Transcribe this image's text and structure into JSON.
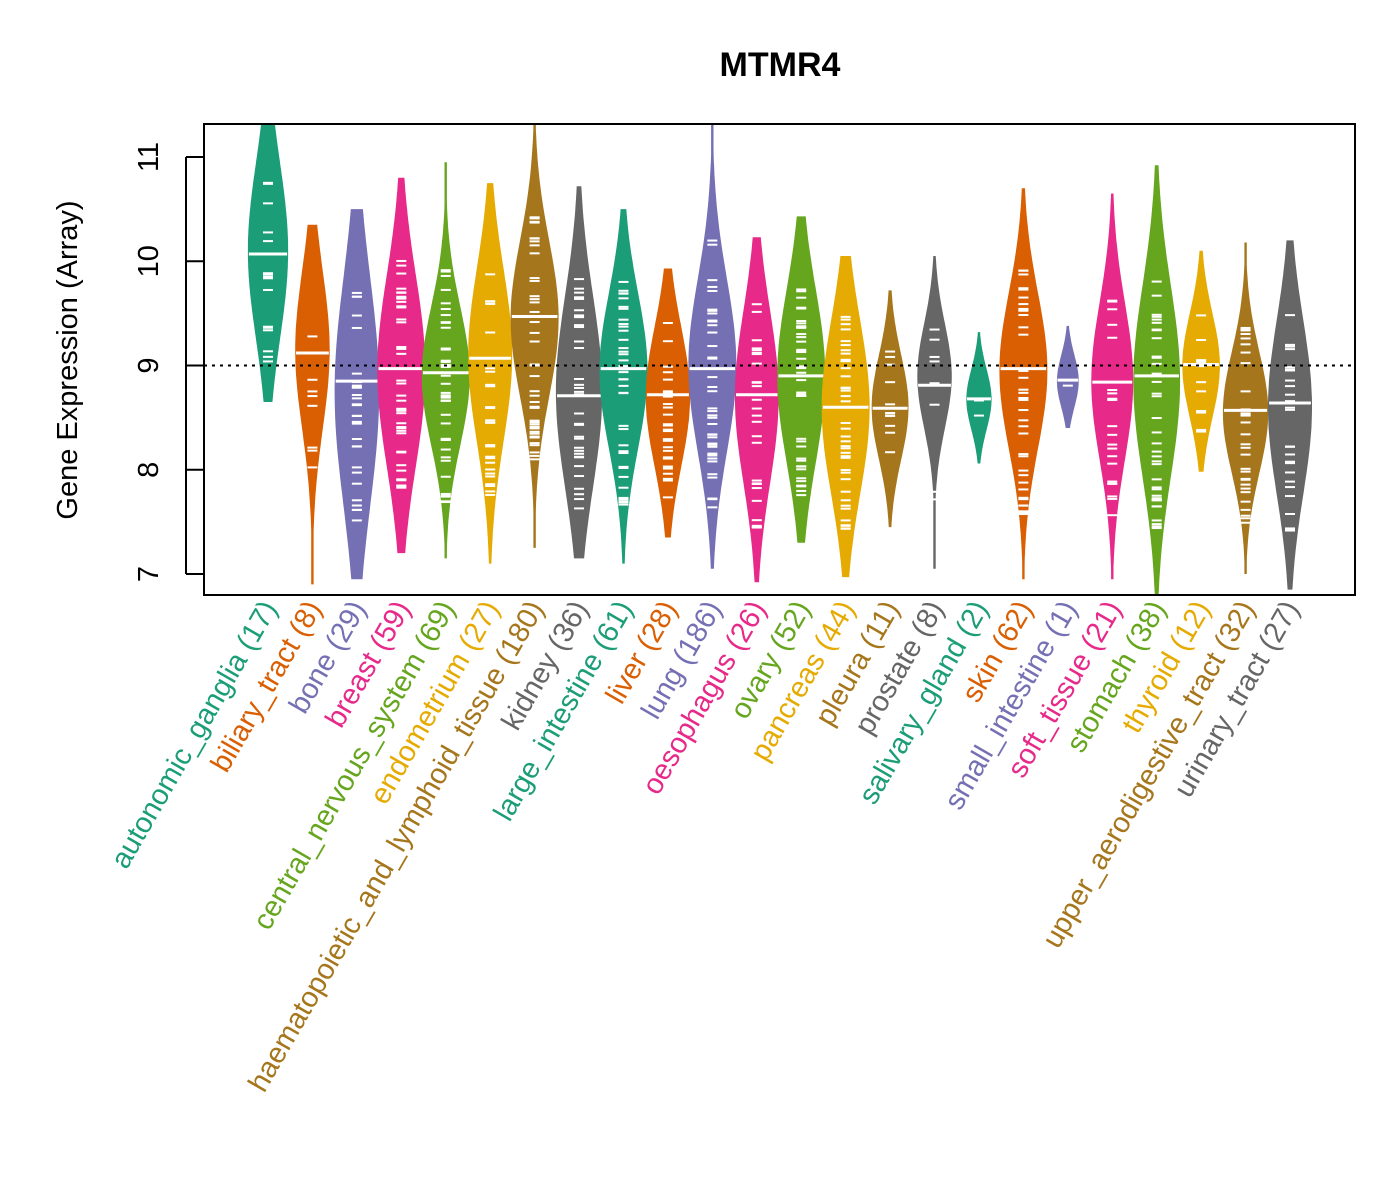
{
  "chart_data": {
    "type": "violin",
    "title": "MTMR4",
    "xlabel": "",
    "ylabel": "Gene Expression (Array)",
    "ylim": [
      6.8,
      11.32
    ],
    "yticks": [
      7,
      8,
      9,
      10,
      11
    ],
    "reference_line": 9.0,
    "grid": false,
    "legend": "none",
    "categories": [
      {
        "name": "autonomic_ganglia",
        "n": 17,
        "label": "autonomic_ganglia (17)",
        "color": "#1B9E77",
        "median": 10.07,
        "min": 8.65,
        "max": 11.32,
        "q1": 9.6,
        "q3": 10.6
      },
      {
        "name": "biliary_tract",
        "n": 8,
        "label": "biliary_tract (8)",
        "color": "#D95F02",
        "median": 9.12,
        "min": 6.9,
        "max": 10.35,
        "q1": 8.7,
        "q3": 9.6
      },
      {
        "name": "bone",
        "n": 29,
        "label": "bone (29)",
        "color": "#7570B3",
        "median": 8.85,
        "min": 6.95,
        "max": 10.5,
        "q1": 8.1,
        "q3": 9.4
      },
      {
        "name": "breast",
        "n": 59,
        "label": "breast (59)",
        "color": "#E7298A",
        "median": 8.97,
        "min": 7.2,
        "max": 10.8,
        "q1": 8.4,
        "q3": 9.5
      },
      {
        "name": "central_nervous_system",
        "n": 69,
        "label": "central_nervous_system (69)",
        "color": "#66A61E",
        "median": 8.93,
        "min": 7.15,
        "max": 10.95,
        "q1": 8.5,
        "q3": 9.3
      },
      {
        "name": "endometrium",
        "n": 27,
        "label": "endometrium (27)",
        "color": "#E6AB02",
        "median": 9.07,
        "min": 7.1,
        "max": 10.75,
        "q1": 8.6,
        "q3": 9.6
      },
      {
        "name": "haematopoietic_and_lymphoid_tissue",
        "n": 180,
        "label": "haematopoietic_and_lymphoid_tissue (180)",
        "color": "#A6761D",
        "median": 9.47,
        "min": 7.25,
        "max": 11.32,
        "q1": 9.0,
        "q3": 9.9
      },
      {
        "name": "kidney",
        "n": 36,
        "label": "kidney (36)",
        "color": "#666666",
        "median": 8.71,
        "min": 7.15,
        "max": 10.72,
        "q1": 8.2,
        "q3": 9.3
      },
      {
        "name": "large_intestine",
        "n": 61,
        "label": "large_intestine (61)",
        "color": "#1B9E77",
        "median": 8.97,
        "min": 7.1,
        "max": 10.5,
        "q1": 8.5,
        "q3": 9.4
      },
      {
        "name": "liver",
        "n": 28,
        "label": "liver (28)",
        "color": "#D95F02",
        "median": 8.72,
        "min": 7.35,
        "max": 9.93,
        "q1": 8.3,
        "q3": 9.1
      },
      {
        "name": "lung",
        "n": 186,
        "label": "lung (186)",
        "color": "#7570B3",
        "median": 8.97,
        "min": 7.05,
        "max": 11.32,
        "q1": 8.5,
        "q3": 9.5
      },
      {
        "name": "oesophagus",
        "n": 26,
        "label": "oesophagus (26)",
        "color": "#E7298A",
        "median": 8.72,
        "min": 6.92,
        "max": 10.23,
        "q1": 8.2,
        "q3": 9.2
      },
      {
        "name": "ovary",
        "n": 52,
        "label": "ovary (52)",
        "color": "#66A61E",
        "median": 8.9,
        "min": 7.3,
        "max": 10.43,
        "q1": 8.4,
        "q3": 9.4
      },
      {
        "name": "pancreas",
        "n": 44,
        "label": "pancreas (44)",
        "color": "#E6AB02",
        "median": 8.6,
        "min": 6.97,
        "max": 10.05,
        "q1": 8.1,
        "q3": 9.1
      },
      {
        "name": "pleura",
        "n": 11,
        "label": "pleura (11)",
        "color": "#A6761D",
        "median": 8.59,
        "min": 7.45,
        "max": 9.72,
        "q1": 8.3,
        "q3": 8.9
      },
      {
        "name": "prostate",
        "n": 8,
        "label": "prostate (8)",
        "color": "#666666",
        "median": 8.81,
        "min": 7.05,
        "max": 10.05,
        "q1": 8.6,
        "q3": 9.2
      },
      {
        "name": "salivary_gland",
        "n": 2,
        "label": "salivary_gland (2)",
        "color": "#1B9E77",
        "median": 8.68,
        "min": 8.06,
        "max": 9.32,
        "q1": 8.5,
        "q3": 8.85
      },
      {
        "name": "skin",
        "n": 62,
        "label": "skin (62)",
        "color": "#D95F02",
        "median": 8.97,
        "min": 6.95,
        "max": 10.7,
        "q1": 8.5,
        "q3": 9.4
      },
      {
        "name": "small_intestine",
        "n": 1,
        "label": "small_intestine (1)",
        "color": "#7570B3",
        "median": 8.86,
        "min": 8.4,
        "max": 9.38,
        "q1": 8.7,
        "q3": 9.0
      },
      {
        "name": "soft_tissue",
        "n": 21,
        "label": "soft_tissue (21)",
        "color": "#E7298A",
        "median": 8.84,
        "min": 6.95,
        "max": 10.65,
        "q1": 8.4,
        "q3": 9.3
      },
      {
        "name": "stomach",
        "n": 38,
        "label": "stomach (38)",
        "color": "#66A61E",
        "median": 8.9,
        "min": 6.8,
        "max": 10.92,
        "q1": 8.3,
        "q3": 9.4
      },
      {
        "name": "thyroid",
        "n": 12,
        "label": "thyroid (12)",
        "color": "#E6AB02",
        "median": 9.01,
        "min": 7.98,
        "max": 10.1,
        "q1": 8.7,
        "q3": 9.3
      },
      {
        "name": "upper_aerodigestive_tract",
        "n": 32,
        "label": "upper_aerodigestive_tract (32)",
        "color": "#A6761D",
        "median": 8.57,
        "min": 7.0,
        "max": 10.18,
        "q1": 8.2,
        "q3": 8.9
      },
      {
        "name": "urinary_tract",
        "n": 27,
        "label": "urinary_tract (27)",
        "color": "#666666",
        "median": 8.64,
        "min": 6.85,
        "max": 10.2,
        "q1": 8.1,
        "q3": 9.1
      }
    ]
  }
}
